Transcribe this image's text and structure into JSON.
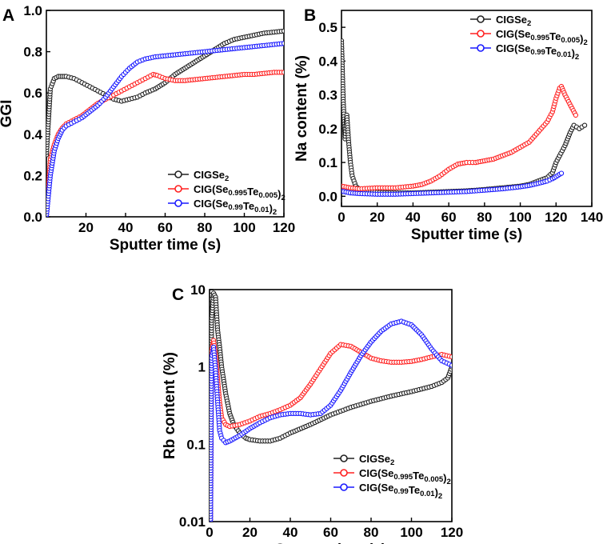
{
  "colors": {
    "black": "#222222",
    "red": "#ff2020",
    "blue": "#1a1aff"
  },
  "chart_data": [
    {
      "panel": "A",
      "type": "line",
      "xlabel": "Sputter time (s)",
      "ylabel": "GGI",
      "xlim": [
        0,
        120
      ],
      "ylim": [
        0,
        1.0
      ],
      "xticks": [
        "20",
        "40",
        "60",
        "80",
        "100",
        "120"
      ],
      "yticks": [
        "0.0",
        "0.2",
        "0.4",
        "0.6",
        "0.8",
        "1.0"
      ],
      "legend": "bottom-right",
      "series": [
        {
          "base": "CIGSe",
          "sub1": "2",
          "mid": "",
          "sub2": "",
          "post": "",
          "color": "black",
          "x": [
            0,
            2,
            4,
            6,
            8,
            10,
            14,
            18,
            22,
            26,
            30,
            34,
            38,
            42,
            46,
            50,
            55,
            60,
            65,
            70,
            75,
            80,
            85,
            90,
            95,
            100,
            105,
            110,
            115,
            120
          ],
          "y": [
            0.3,
            0.62,
            0.67,
            0.68,
            0.68,
            0.68,
            0.67,
            0.65,
            0.63,
            0.61,
            0.59,
            0.57,
            0.56,
            0.57,
            0.58,
            0.6,
            0.62,
            0.65,
            0.69,
            0.72,
            0.75,
            0.78,
            0.81,
            0.84,
            0.86,
            0.87,
            0.88,
            0.89,
            0.895,
            0.9
          ]
        },
        {
          "base": "CIG(Se",
          "sub1": "0.995",
          "mid": "Te",
          "sub2": "0.005",
          "post": ")2",
          "color": "red",
          "x": [
            0,
            2,
            4,
            6,
            8,
            10,
            14,
            18,
            22,
            26,
            30,
            34,
            38,
            42,
            46,
            50,
            54,
            56,
            60,
            65,
            70,
            75,
            80,
            85,
            90,
            95,
            100,
            105,
            110,
            115,
            120
          ],
          "y": [
            0.0,
            0.28,
            0.35,
            0.4,
            0.43,
            0.45,
            0.47,
            0.49,
            0.52,
            0.55,
            0.57,
            0.59,
            0.61,
            0.63,
            0.65,
            0.67,
            0.69,
            0.685,
            0.67,
            0.66,
            0.66,
            0.665,
            0.67,
            0.675,
            0.68,
            0.685,
            0.69,
            0.69,
            0.695,
            0.7,
            0.7
          ]
        },
        {
          "base": "CIG(Se",
          "sub1": "0.99",
          "mid": "Te",
          "sub2": "0.01",
          "post": ")2",
          "color": "blue",
          "x": [
            0,
            2,
            4,
            6,
            8,
            10,
            14,
            18,
            22,
            26,
            30,
            34,
            38,
            42,
            46,
            50,
            55,
            60,
            65,
            70,
            75,
            80,
            85,
            90,
            95,
            100,
            105,
            110,
            115,
            120
          ],
          "y": [
            0.0,
            0.2,
            0.32,
            0.38,
            0.42,
            0.44,
            0.46,
            0.48,
            0.51,
            0.54,
            0.58,
            0.63,
            0.68,
            0.72,
            0.75,
            0.765,
            0.775,
            0.78,
            0.785,
            0.79,
            0.795,
            0.8,
            0.805,
            0.81,
            0.815,
            0.82,
            0.825,
            0.83,
            0.835,
            0.84
          ]
        }
      ]
    },
    {
      "panel": "B",
      "type": "line",
      "xlabel": "Sputter time (s)",
      "ylabel": "Na content (%)",
      "xlim": [
        0,
        140
      ],
      "ylim": [
        -0.03,
        0.55
      ],
      "xticks": [
        "0",
        "20",
        "40",
        "60",
        "80",
        "100",
        "120",
        "140"
      ],
      "yticks": [
        "0.0",
        "0.1",
        "0.2",
        "0.3",
        "0.4",
        "0.5"
      ],
      "legend": "top-right",
      "series": [
        {
          "base": "CIGSe",
          "sub1": "2",
          "mid": "",
          "sub2": "",
          "post": "",
          "color": "black",
          "x": [
            0,
            1,
            2,
            3,
            4,
            5,
            6,
            8,
            10,
            15,
            20,
            30,
            40,
            50,
            60,
            70,
            80,
            90,
            100,
            105,
            110,
            115,
            118,
            120,
            122,
            125,
            128,
            130,
            133,
            136
          ],
          "y": [
            0.46,
            0.28,
            0.17,
            0.24,
            0.16,
            0.1,
            0.06,
            0.03,
            0.02,
            0.015,
            0.012,
            0.01,
            0.01,
            0.012,
            0.014,
            0.016,
            0.02,
            0.025,
            0.03,
            0.035,
            0.045,
            0.055,
            0.07,
            0.1,
            0.12,
            0.15,
            0.19,
            0.21,
            0.2,
            0.21
          ]
        },
        {
          "base": "CIG(Se",
          "sub1": "0.995",
          "mid": "Te",
          "sub2": "0.005",
          "post": ")2",
          "color": "red",
          "x": [
            0,
            5,
            10,
            20,
            30,
            40,
            45,
            50,
            55,
            60,
            65,
            70,
            75,
            80,
            85,
            90,
            95,
            100,
            105,
            110,
            115,
            118,
            120,
            122,
            123,
            125,
            127,
            129,
            131
          ],
          "y": [
            0.03,
            0.025,
            0.022,
            0.025,
            0.025,
            0.03,
            0.035,
            0.045,
            0.06,
            0.08,
            0.095,
            0.1,
            0.1,
            0.105,
            0.11,
            0.12,
            0.13,
            0.145,
            0.16,
            0.19,
            0.22,
            0.25,
            0.29,
            0.32,
            0.325,
            0.3,
            0.28,
            0.26,
            0.24
          ]
        },
        {
          "base": "CIG(Se",
          "sub1": "0.99",
          "mid": "Te",
          "sub2": "0.01",
          "post": ")2",
          "color": "blue",
          "x": [
            0,
            5,
            10,
            20,
            30,
            40,
            50,
            60,
            70,
            80,
            90,
            100,
            105,
            110,
            115,
            118,
            120,
            122,
            123
          ],
          "y": [
            0.015,
            0.01,
            0.008,
            0.006,
            0.006,
            0.008,
            0.01,
            0.012,
            0.014,
            0.018,
            0.022,
            0.028,
            0.032,
            0.038,
            0.045,
            0.052,
            0.058,
            0.065,
            0.068
          ]
        }
      ]
    },
    {
      "panel": "C",
      "type": "line",
      "xlabel": "Sputter time (s)",
      "ylabel": "Rb content (%)",
      "xlim": [
        0,
        120
      ],
      "ylim": [
        0.01,
        10
      ],
      "yscale": "log",
      "xticks": [
        "0",
        "20",
        "40",
        "60",
        "80",
        "100",
        "120"
      ],
      "yticks": [
        "0.01",
        "0.1",
        "1",
        "10"
      ],
      "legend": "bottom-right",
      "series": [
        {
          "base": "CIGSe",
          "sub1": "2",
          "mid": "",
          "sub2": "",
          "post": "",
          "color": "black",
          "x": [
            0.5,
            1,
            2,
            3,
            4,
            5,
            6,
            8,
            10,
            12,
            15,
            18,
            20,
            25,
            30,
            35,
            40,
            50,
            60,
            70,
            80,
            90,
            100,
            110,
            115,
            118,
            120
          ],
          "y": [
            0.01,
            4,
            9,
            8,
            3,
            1.8,
            1.0,
            0.45,
            0.25,
            0.18,
            0.14,
            0.12,
            0.115,
            0.11,
            0.11,
            0.12,
            0.14,
            0.18,
            0.24,
            0.3,
            0.36,
            0.42,
            0.48,
            0.56,
            0.63,
            0.72,
            1.0
          ]
        },
        {
          "base": "CIG(Se",
          "sub1": "0.995",
          "mid": "Te",
          "sub2": "0.005",
          "post": ")2",
          "color": "red",
          "x": [
            0.5,
            1,
            2,
            3,
            4,
            5,
            6,
            8,
            10,
            15,
            20,
            25,
            30,
            35,
            40,
            45,
            50,
            55,
            60,
            65,
            70,
            75,
            80,
            85,
            90,
            95,
            100,
            105,
            110,
            115,
            120
          ],
          "y": [
            0.01,
            1.6,
            2.2,
            1.4,
            0.7,
            0.35,
            0.22,
            0.18,
            0.17,
            0.18,
            0.2,
            0.23,
            0.25,
            0.28,
            0.32,
            0.4,
            0.6,
            0.95,
            1.5,
            1.95,
            1.85,
            1.55,
            1.3,
            1.2,
            1.15,
            1.15,
            1.18,
            1.25,
            1.35,
            1.45,
            1.35
          ]
        },
        {
          "base": "CIG(Se",
          "sub1": "0.99",
          "mid": "Te",
          "sub2": "0.01",
          "post": ")2",
          "color": "blue",
          "x": [
            0.5,
            1,
            2,
            3,
            4,
            5,
            6,
            8,
            10,
            15,
            20,
            25,
            30,
            35,
            40,
            45,
            50,
            55,
            60,
            65,
            70,
            75,
            80,
            85,
            90,
            95,
            100,
            105,
            110,
            115,
            120
          ],
          "y": [
            0.01,
            1.3,
            1.8,
            0.9,
            0.35,
            0.15,
            0.12,
            0.105,
            0.11,
            0.13,
            0.16,
            0.19,
            0.22,
            0.24,
            0.25,
            0.25,
            0.24,
            0.25,
            0.32,
            0.5,
            0.85,
            1.4,
            2.1,
            2.9,
            3.6,
            3.9,
            3.5,
            2.6,
            1.7,
            1.2,
            1.05
          ]
        }
      ]
    }
  ]
}
